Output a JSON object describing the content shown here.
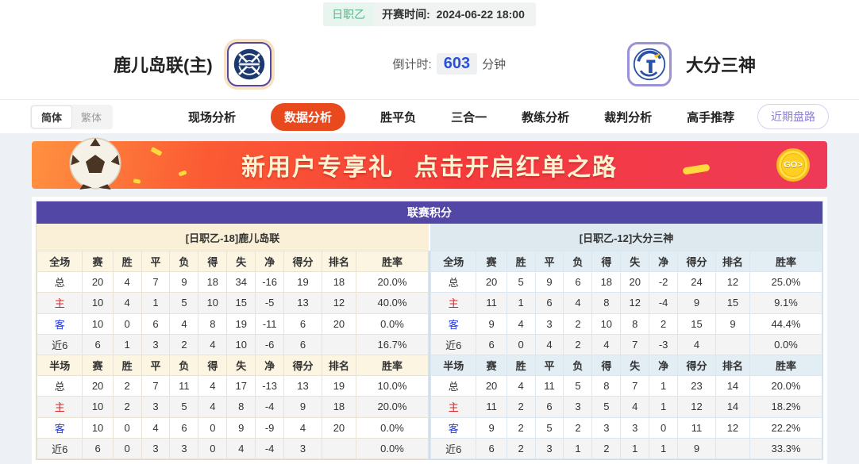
{
  "top_bar": {
    "league_badge": "日职乙",
    "kickoff_label": "开赛时间:",
    "kickoff_time": "2024-06-22 18:00"
  },
  "match_header": {
    "home_team": "鹿儿岛联(主)",
    "away_team": "大分三神",
    "countdown_label": "倒计时:",
    "countdown_value": "603",
    "countdown_unit": "分钟"
  },
  "nav": {
    "lang": {
      "simplified": "简体",
      "traditional": "繁体",
      "active": "简体"
    },
    "tabs": [
      {
        "label": "现场分析",
        "active": false
      },
      {
        "label": "数据分析",
        "active": true
      },
      {
        "label": "胜平负",
        "active": false
      },
      {
        "label": "三合一",
        "active": false
      },
      {
        "label": "教练分析",
        "active": false
      },
      {
        "label": "裁判分析",
        "active": false
      },
      {
        "label": "高手推荐",
        "active": false
      }
    ],
    "recent_odds_button": "近期盘路"
  },
  "banner": {
    "text1": "新用户专享礼",
    "text2": "点击开启红单之路",
    "go_label": "GO>"
  },
  "league_table": {
    "title": "联赛积分",
    "home_header": "[日职乙-18]鹿儿岛联",
    "away_header": "[日职乙-12]大分三神",
    "columns_full": [
      "全场",
      "赛",
      "胜",
      "平",
      "负",
      "得",
      "失",
      "净",
      "得分",
      "排名",
      "胜率"
    ],
    "columns_half": [
      "半场",
      "赛",
      "胜",
      "平",
      "负",
      "得",
      "失",
      "净",
      "得分",
      "排名",
      "胜率"
    ],
    "home": {
      "full": [
        {
          "label": "总",
          "type": "total",
          "values": [
            "20",
            "4",
            "7",
            "9",
            "18",
            "34",
            "-16",
            "19",
            "18",
            "20.0%"
          ]
        },
        {
          "label": "主",
          "type": "home",
          "values": [
            "10",
            "4",
            "1",
            "5",
            "10",
            "15",
            "-5",
            "13",
            "12",
            "40.0%"
          ]
        },
        {
          "label": "客",
          "type": "away",
          "values": [
            "10",
            "0",
            "6",
            "4",
            "8",
            "19",
            "-11",
            "6",
            "20",
            "0.0%"
          ]
        },
        {
          "label": "近6",
          "type": "recent",
          "values": [
            "6",
            "1",
            "3",
            "2",
            "4",
            "10",
            "-6",
            "6",
            "",
            "16.7%"
          ]
        }
      ],
      "half": [
        {
          "label": "总",
          "type": "total",
          "values": [
            "20",
            "2",
            "7",
            "11",
            "4",
            "17",
            "-13",
            "13",
            "19",
            "10.0%"
          ]
        },
        {
          "label": "主",
          "type": "home",
          "values": [
            "10",
            "2",
            "3",
            "5",
            "4",
            "8",
            "-4",
            "9",
            "18",
            "20.0%"
          ]
        },
        {
          "label": "客",
          "type": "away",
          "values": [
            "10",
            "0",
            "4",
            "6",
            "0",
            "9",
            "-9",
            "4",
            "20",
            "0.0%"
          ]
        },
        {
          "label": "近6",
          "type": "recent",
          "values": [
            "6",
            "0",
            "3",
            "3",
            "0",
            "4",
            "-4",
            "3",
            "",
            "0.0%"
          ]
        }
      ]
    },
    "away": {
      "full": [
        {
          "label": "总",
          "type": "total",
          "values": [
            "20",
            "5",
            "9",
            "6",
            "18",
            "20",
            "-2",
            "24",
            "12",
            "25.0%"
          ]
        },
        {
          "label": "主",
          "type": "home",
          "values": [
            "11",
            "1",
            "6",
            "4",
            "8",
            "12",
            "-4",
            "9",
            "15",
            "9.1%"
          ]
        },
        {
          "label": "客",
          "type": "away",
          "values": [
            "9",
            "4",
            "3",
            "2",
            "10",
            "8",
            "2",
            "15",
            "9",
            "44.4%"
          ]
        },
        {
          "label": "近6",
          "type": "recent",
          "values": [
            "6",
            "0",
            "4",
            "2",
            "4",
            "7",
            "-3",
            "4",
            "",
            "0.0%"
          ]
        }
      ],
      "half": [
        {
          "label": "总",
          "type": "total",
          "values": [
            "20",
            "4",
            "11",
            "5",
            "8",
            "7",
            "1",
            "23",
            "14",
            "20.0%"
          ]
        },
        {
          "label": "主",
          "type": "home",
          "values": [
            "11",
            "2",
            "6",
            "3",
            "5",
            "4",
            "1",
            "12",
            "14",
            "18.2%"
          ]
        },
        {
          "label": "客",
          "type": "away",
          "values": [
            "9",
            "2",
            "5",
            "2",
            "3",
            "3",
            "0",
            "11",
            "12",
            "22.2%"
          ]
        },
        {
          "label": "近6",
          "type": "recent",
          "values": [
            "6",
            "2",
            "3",
            "1",
            "2",
            "1",
            "1",
            "9",
            "",
            "33.3%"
          ]
        }
      ]
    }
  },
  "colors": {
    "accent_orange": "#e8491d",
    "table_header_purple": "#5247a5",
    "home_row_red": "#e02020",
    "away_row_blue": "#2438d8",
    "countdown_blue": "#2950d8",
    "badge_green": "#56b48a",
    "home_subheader_bg": "#faf0d7",
    "away_subheader_bg": "#dde9ef"
  }
}
